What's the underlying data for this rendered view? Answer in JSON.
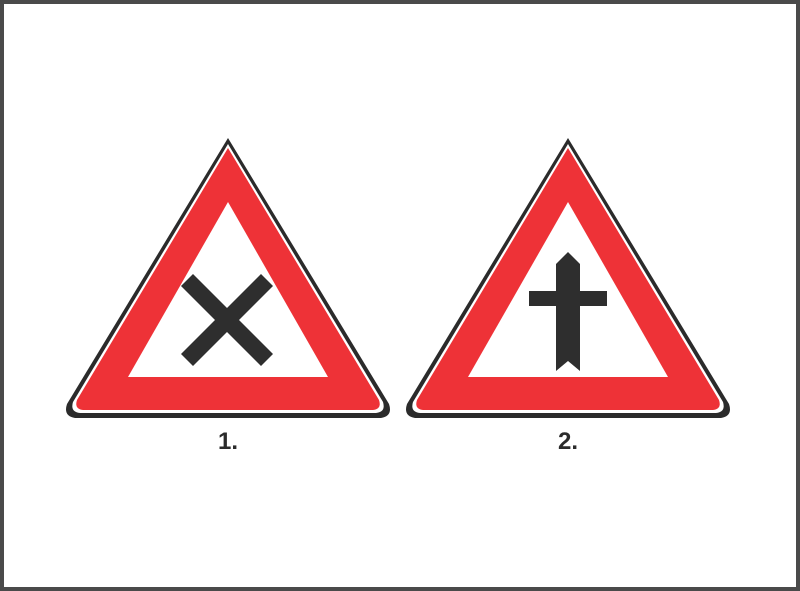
{
  "signs": [
    {
      "number": "1.",
      "symbol": "crossroads-x",
      "meaning": ""
    },
    {
      "number": "2.",
      "symbol": "priority-crossroads",
      "meaning": ""
    }
  ],
  "colors": {
    "border_red": "#ee3237",
    "outline": "#2b2b2b",
    "symbol": "#2e2e2e",
    "frame": "#4a4a4a",
    "background": "#ffffff"
  }
}
